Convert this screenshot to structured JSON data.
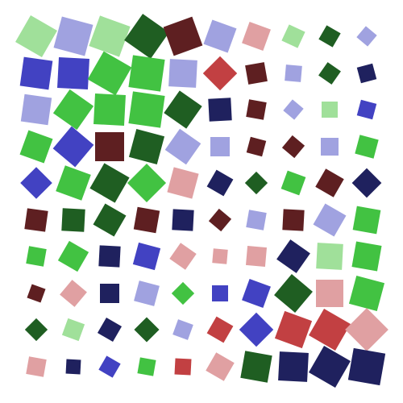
{
  "palette": {
    "lightgreen": "#a0e09a",
    "lavender": "#a0a2e0",
    "darkgreen": "#1f5e22",
    "maroon": "#5e1f21",
    "pink": "#e0a0a2",
    "blue": "#4242c2",
    "green": "#42c242",
    "red": "#c24042",
    "navy": "#1f215e"
  },
  "grid": {
    "rows": 10,
    "cols": 10,
    "cells": [
      [
        {
          "c": "lightgreen",
          "s": 38,
          "r": 30
        },
        {
          "c": "lavender",
          "s": 40,
          "r": 15
        },
        {
          "c": "lightgreen",
          "s": 40,
          "r": 20
        },
        {
          "c": "darkgreen",
          "s": 40,
          "r": 35
        },
        {
          "c": "maroon",
          "s": 38,
          "r": -20
        },
        {
          "c": "lavender",
          "s": 32,
          "r": 20
        },
        {
          "c": "pink",
          "s": 28,
          "r": 20
        },
        {
          "c": "lightgreen",
          "s": 22,
          "r": 25
        },
        {
          "c": "darkgreen",
          "s": 20,
          "r": 30
        },
        {
          "c": "lavender",
          "s": 18,
          "r": 40
        }
      ],
      [
        {
          "c": "blue",
          "s": 36,
          "r": 8
        },
        {
          "c": "blue",
          "s": 38,
          "r": 3
        },
        {
          "c": "green",
          "s": 40,
          "r": 30
        },
        {
          "c": "green",
          "s": 40,
          "r": 8
        },
        {
          "c": "lavender",
          "s": 34,
          "r": 3
        },
        {
          "c": "red",
          "s": 30,
          "r": 45
        },
        {
          "c": "maroon",
          "s": 24,
          "r": -10
        },
        {
          "c": "lavender",
          "s": 20,
          "r": 5
        },
        {
          "c": "darkgreen",
          "s": 20,
          "r": 35
        },
        {
          "c": "navy",
          "s": 20,
          "r": -15
        }
      ],
      [
        {
          "c": "lavender",
          "s": 34,
          "r": 8
        },
        {
          "c": "green",
          "s": 36,
          "r": 35
        },
        {
          "c": "green",
          "s": 38,
          "r": 3
        },
        {
          "c": "green",
          "s": 40,
          "r": 8
        },
        {
          "c": "darkgreen",
          "s": 34,
          "r": 35
        },
        {
          "c": "navy",
          "s": 28,
          "r": -3
        },
        {
          "c": "maroon",
          "s": 22,
          "r": 10
        },
        {
          "c": "lavender",
          "s": 18,
          "r": 40
        },
        {
          "c": "lightgreen",
          "s": 20,
          "r": 0
        },
        {
          "c": "blue",
          "s": 20,
          "r": 15
        }
      ],
      [
        {
          "c": "green",
          "s": 32,
          "r": 20
        },
        {
          "c": "blue",
          "s": 36,
          "r": 40
        },
        {
          "c": "maroon",
          "s": 36,
          "r": 0
        },
        {
          "c": "darkgreen",
          "s": 36,
          "r": 15
        },
        {
          "c": "lavender",
          "s": 32,
          "r": 35
        },
        {
          "c": "lavender",
          "s": 24,
          "r": 0
        },
        {
          "c": "maroon",
          "s": 20,
          "r": 15
        },
        {
          "c": "maroon",
          "s": 20,
          "r": 40
        },
        {
          "c": "lavender",
          "s": 22,
          "r": 0
        },
        {
          "c": "green",
          "s": 24,
          "r": 15
        }
      ],
      [
        {
          "c": "blue",
          "s": 28,
          "r": 45
        },
        {
          "c": "green",
          "s": 34,
          "r": 20
        },
        {
          "c": "darkgreen",
          "s": 36,
          "r": 30
        },
        {
          "c": "green",
          "s": 34,
          "r": 45
        },
        {
          "c": "pink",
          "s": 32,
          "r": 15
        },
        {
          "c": "navy",
          "s": 24,
          "r": 30
        },
        {
          "c": "darkgreen",
          "s": 20,
          "r": 45
        },
        {
          "c": "green",
          "s": 24,
          "r": 20
        },
        {
          "c": "maroon",
          "s": 26,
          "r": 30
        },
        {
          "c": "navy",
          "s": 26,
          "r": 45
        }
      ],
      [
        {
          "c": "maroon",
          "s": 26,
          "r": 8
        },
        {
          "c": "darkgreen",
          "s": 28,
          "r": 3
        },
        {
          "c": "darkgreen",
          "s": 30,
          "r": 30
        },
        {
          "c": "maroon",
          "s": 28,
          "r": 10
        },
        {
          "c": "navy",
          "s": 26,
          "r": 3
        },
        {
          "c": "maroon",
          "s": 20,
          "r": 40
        },
        {
          "c": "lavender",
          "s": 22,
          "r": 10
        },
        {
          "c": "maroon",
          "s": 26,
          "r": 3
        },
        {
          "c": "lavender",
          "s": 30,
          "r": 30
        },
        {
          "c": "green",
          "s": 30,
          "r": 10
        }
      ],
      [
        {
          "c": "green",
          "s": 22,
          "r": 10
        },
        {
          "c": "green",
          "s": 28,
          "r": 30
        },
        {
          "c": "navy",
          "s": 26,
          "r": 3
        },
        {
          "c": "blue",
          "s": 28,
          "r": 15
        },
        {
          "c": "pink",
          "s": 24,
          "r": 35
        },
        {
          "c": "pink",
          "s": 18,
          "r": 5
        },
        {
          "c": "pink",
          "s": 24,
          "r": 5
        },
        {
          "c": "navy",
          "s": 30,
          "r": 35
        },
        {
          "c": "lightgreen",
          "s": 32,
          "r": 3
        },
        {
          "c": "green",
          "s": 32,
          "r": 10
        }
      ],
      [
        {
          "c": "maroon",
          "s": 18,
          "r": 20
        },
        {
          "c": "pink",
          "s": 24,
          "r": 40
        },
        {
          "c": "navy",
          "s": 24,
          "r": 0
        },
        {
          "c": "lavender",
          "s": 26,
          "r": 15
        },
        {
          "c": "green",
          "s": 20,
          "r": 45
        },
        {
          "c": "blue",
          "s": 20,
          "r": 0
        },
        {
          "c": "blue",
          "s": 28,
          "r": 20
        },
        {
          "c": "darkgreen",
          "s": 34,
          "r": 40
        },
        {
          "c": "pink",
          "s": 34,
          "r": 0
        },
        {
          "c": "green",
          "s": 36,
          "r": 15
        }
      ],
      [
        {
          "c": "darkgreen",
          "s": 20,
          "r": 45
        },
        {
          "c": "lightgreen",
          "s": 22,
          "r": 20
        },
        {
          "c": "navy",
          "s": 22,
          "r": 30
        },
        {
          "c": "darkgreen",
          "s": 22,
          "r": 45
        },
        {
          "c": "lavender",
          "s": 20,
          "r": 20
        },
        {
          "c": "red",
          "s": 24,
          "r": 30
        },
        {
          "c": "blue",
          "s": 30,
          "r": 45
        },
        {
          "c": "red",
          "s": 36,
          "r": 20
        },
        {
          "c": "red",
          "s": 38,
          "r": 30
        },
        {
          "c": "pink",
          "s": 38,
          "r": 45
        }
      ],
      [
        {
          "c": "pink",
          "s": 22,
          "r": 10
        },
        {
          "c": "navy",
          "s": 18,
          "r": 3
        },
        {
          "c": "blue",
          "s": 20,
          "r": 30
        },
        {
          "c": "green",
          "s": 20,
          "r": 10
        },
        {
          "c": "red",
          "s": 20,
          "r": 3
        },
        {
          "c": "pink",
          "s": 26,
          "r": 30
        },
        {
          "c": "darkgreen",
          "s": 34,
          "r": 10
        },
        {
          "c": "navy",
          "s": 36,
          "r": 3
        },
        {
          "c": "navy",
          "s": 38,
          "r": 30
        },
        {
          "c": "navy",
          "s": 40,
          "r": 10
        }
      ]
    ]
  }
}
